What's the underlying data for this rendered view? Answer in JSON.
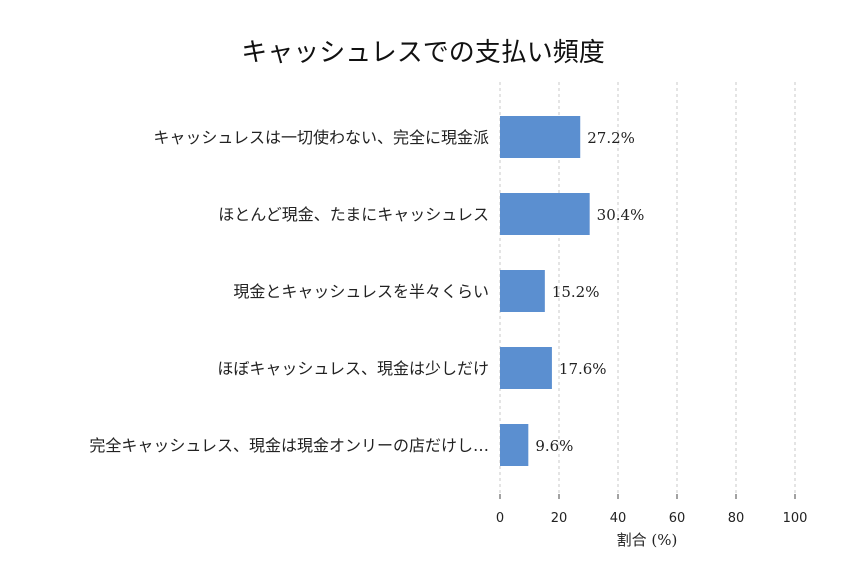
{
  "chart_data": {
    "type": "bar",
    "orientation": "horizontal",
    "title": "キャッシュレスでの支払い頻度",
    "xlabel": "割合 (%)",
    "ylabel": "",
    "xlim": [
      0,
      100
    ],
    "xticks": [
      0,
      20,
      40,
      60,
      80,
      100
    ],
    "grid": "vertical-dashed",
    "bar_color": "#5b8fd0",
    "categories": [
      "キャッシュレスは一切使わない、完全に現金派",
      "ほとんど現金、たまにキャッシュレス",
      "現金とキャッシュレスを半々くらい",
      "ほぼキャッシュレス、現金は少しだけ",
      "完全キャッシュレス、現金は現金オンリーの店だけし…"
    ],
    "values": [
      27.2,
      30.4,
      15.2,
      17.6,
      9.6
    ],
    "value_labels": [
      "27.2%",
      "30.4%",
      "15.2%",
      "17.6%",
      "9.6%"
    ]
  }
}
